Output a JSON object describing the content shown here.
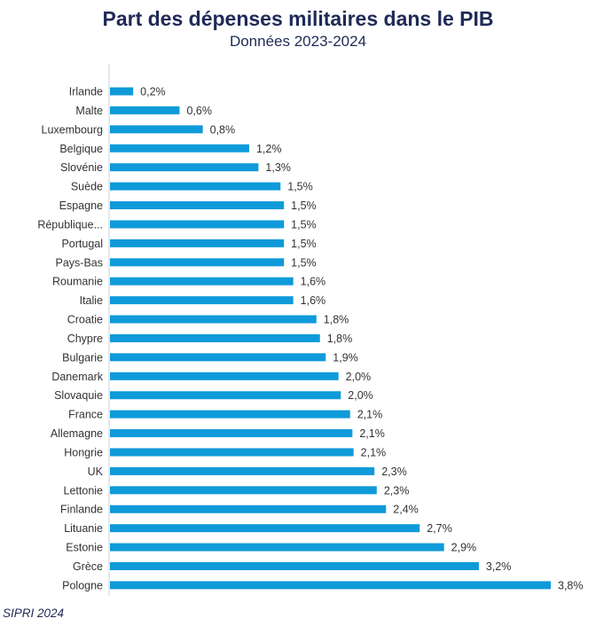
{
  "chart_data": {
    "type": "bar",
    "orientation": "horizontal",
    "title": "Part des dépenses militaires dans le PIB",
    "subtitle": "Données 2023-2024",
    "xlabel": "",
    "ylabel": "",
    "xlim": [
      0,
      3.8
    ],
    "grid": false,
    "categories": [
      "Irlande",
      "Malte",
      "Luxembourg",
      "Belgique",
      "Slovénie",
      "Suède",
      "Espagne",
      "République...",
      "Portugal",
      "Pays-Bas",
      "Roumanie",
      "Italie",
      "Croatie",
      "Chypre",
      "Bulgarie",
      "Danemark",
      "Slovaquie",
      "France",
      "Allemagne",
      "Hongrie",
      "UK",
      "Lettonie",
      "Finlande",
      "Lituanie",
      "Estonie",
      "Grèce",
      "Pologne"
    ],
    "values": [
      0.2,
      0.6,
      0.8,
      1.2,
      1.3,
      1.5,
      1.5,
      1.5,
      1.5,
      1.5,
      1.6,
      1.6,
      1.8,
      1.8,
      1.9,
      2.0,
      2.0,
      2.1,
      2.1,
      2.1,
      2.3,
      2.3,
      2.4,
      2.7,
      2.9,
      3.2,
      3.8
    ],
    "bar_lengths": [
      0.2,
      0.6,
      0.8,
      1.2,
      1.28,
      1.47,
      1.5,
      1.5,
      1.5,
      1.5,
      1.58,
      1.58,
      1.78,
      1.81,
      1.86,
      1.97,
      1.99,
      2.07,
      2.09,
      2.1,
      2.28,
      2.3,
      2.38,
      2.67,
      2.88,
      3.18,
      3.8
    ],
    "value_labels": [
      "0,2%",
      "0,6%",
      "0,8%",
      "1,2%",
      "1,3%",
      "1,5%",
      "1,5%",
      "1,5%",
      "1,5%",
      "1,5%",
      "1,6%",
      "1,6%",
      "1,8%",
      "1,8%",
      "1,9%",
      "2,0%",
      "2,0%",
      "2,1%",
      "2,1%",
      "2,1%",
      "2,3%",
      "2,3%",
      "2,4%",
      "2,7%",
      "2,9%",
      "3,2%",
      "3,8%"
    ],
    "bar_color": "#0f9ad9"
  },
  "source": "SIPRI 2024",
  "colors": {
    "title": "#1f2a57",
    "axis": "#c9d3dc",
    "text": "#333333"
  }
}
